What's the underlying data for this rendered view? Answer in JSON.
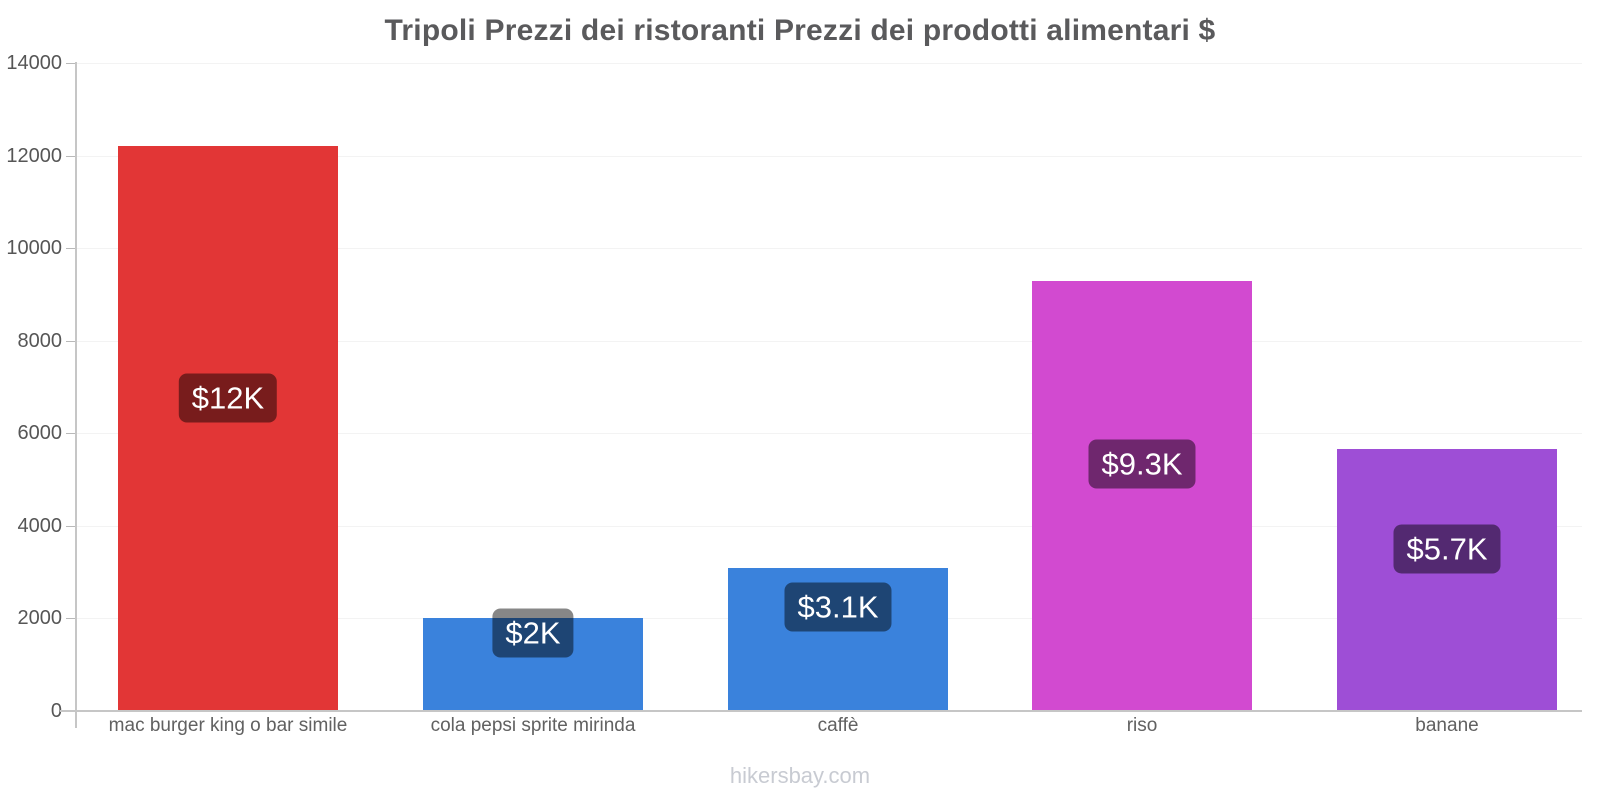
{
  "title": "Tripoli Prezzi dei ristoranti Prezzi dei prodotti alimentari $",
  "footer": {
    "text": "hikersbay.com"
  },
  "chart_data": {
    "type": "bar",
    "title": "Tripoli Prezzi dei ristoranti Prezzi dei prodotti alimentari $",
    "categories": [
      "mac burger king o bar simile",
      "cola pepsi sprite mirinda",
      "caffè",
      "riso",
      "banane"
    ],
    "values": [
      12200,
      2000,
      3100,
      9300,
      5650
    ],
    "value_labels": [
      "$12K",
      "$2K",
      "$3.1K",
      "$9.3K",
      "$5.7K"
    ],
    "bar_colors": [
      "#e23636",
      "#3a82dc",
      "#3a82dc",
      "#d24ad0",
      "#9e4ed6"
    ],
    "badge_bg": "rgba(0,0,0,0.47)",
    "badge_text_color": "#ffffff",
    "xlabel": "",
    "ylabel": "",
    "ylim": [
      0,
      14000
    ],
    "yticks": [
      0,
      2000,
      4000,
      6000,
      8000,
      10000,
      12000,
      14000
    ],
    "ytick_labels": [
      "0",
      "2000",
      "4000",
      "6000",
      "8000",
      "10000",
      "12000",
      "14000"
    ],
    "grid": "faint-horizontal",
    "legend": "none",
    "label_pos_frac_from_bottom": [
      0.554,
      0.842,
      0.725,
      0.574,
      0.62
    ]
  },
  "colors": {
    "background": "#ffffff",
    "axis": "#c6c6c6",
    "gridline": "#f3f3f3",
    "title_text": "#5a5a5c",
    "ytick_text": "#565656",
    "xlabel_text": "#616161",
    "footer_text": "#c8cbd2"
  }
}
